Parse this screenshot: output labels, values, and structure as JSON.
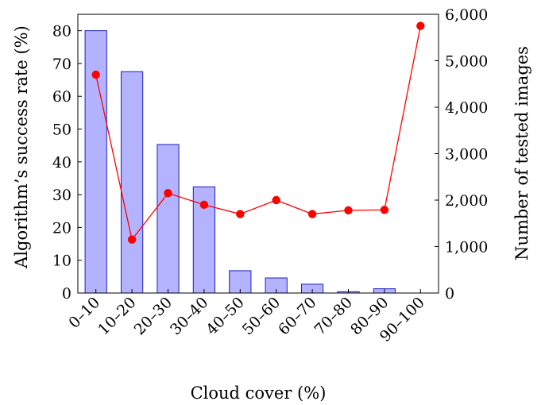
{
  "chart_data": {
    "type": "bar",
    "categories": [
      "0–10",
      "10–20",
      "20–30",
      "30–40",
      "40–50",
      "50–60",
      "60–70",
      "70–80",
      "80–90",
      "90–100"
    ],
    "xlabel": "Cloud cover (%)",
    "ylabel": "Algorithm’s success rate (%)",
    "y2label": "Number of tested images",
    "ylim": [
      0,
      85
    ],
    "y2lim": [
      0,
      6000
    ],
    "yticks": [
      0,
      10,
      20,
      30,
      40,
      50,
      60,
      70,
      80
    ],
    "y2ticks": [
      0,
      1000,
      2000,
      3000,
      4000,
      5000,
      6000
    ],
    "y2tick_labels": [
      "0",
      "1,000",
      "2,000",
      "3,000",
      "4,000",
      "5,000",
      "6,000"
    ],
    "series": [
      {
        "axis": "left",
        "type": "bar",
        "color": "#b3b3ff",
        "edge_color": "#1f1fbf",
        "values": [
          80,
          67.5,
          45.3,
          32.4,
          6.8,
          4.6,
          2.7,
          0.4,
          1.3,
          0
        ]
      },
      {
        "axis": "right",
        "type": "line",
        "color": "#ff0000",
        "values": [
          4700,
          1150,
          2150,
          1900,
          1700,
          2000,
          1700,
          1780,
          1790,
          5750
        ]
      }
    ],
    "grid": false
  }
}
